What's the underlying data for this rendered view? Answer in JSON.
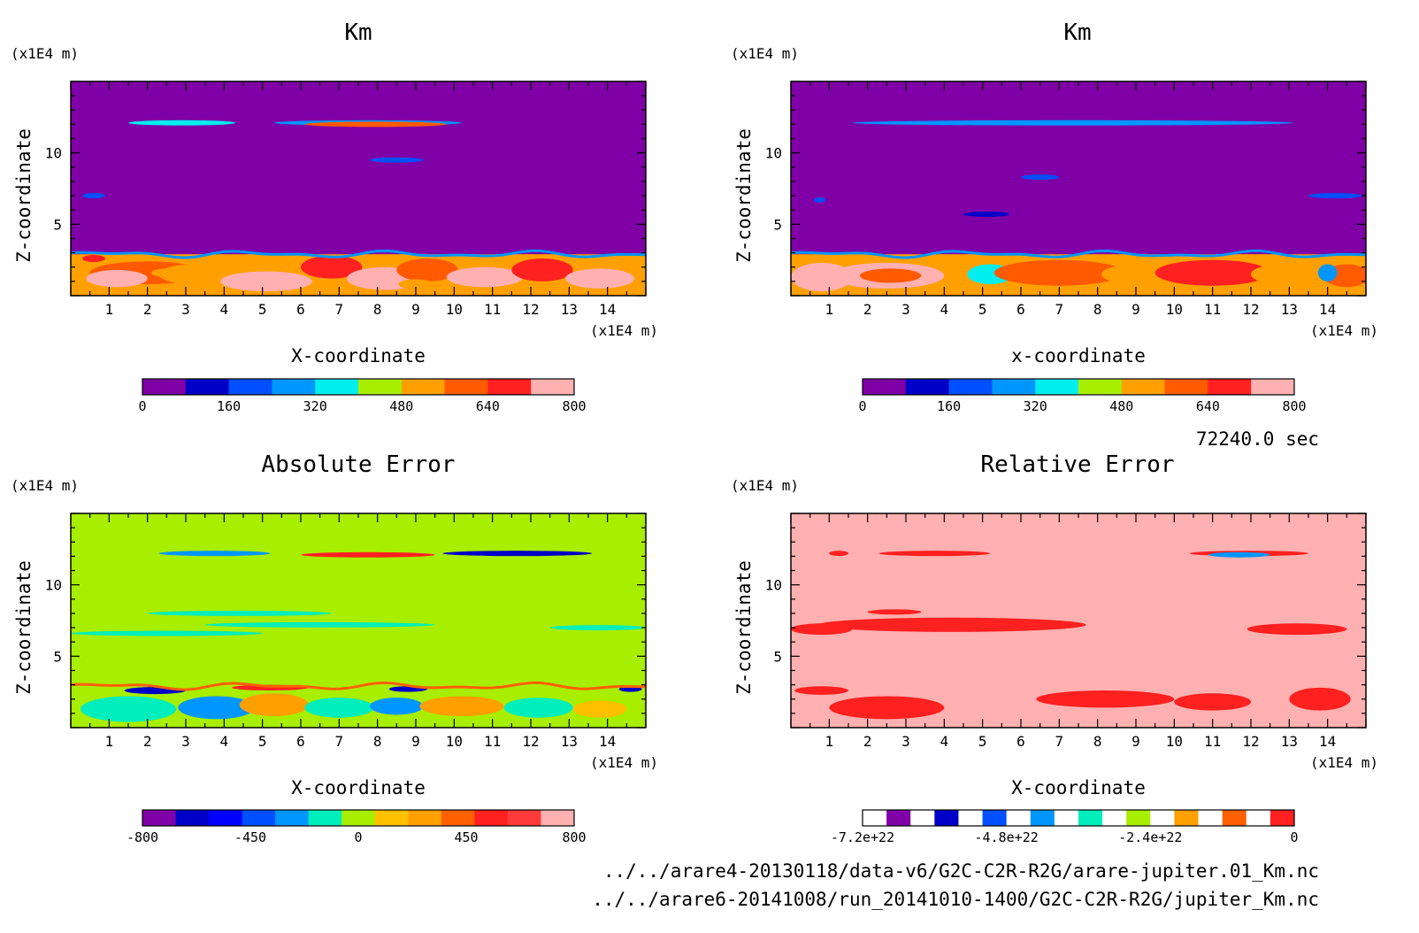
{
  "footer": {
    "time": "72240.0 sec",
    "files": [
      "../../arare4-20130118/data-v6/G2C-C2R-R2G/arare-jupiter.01_Km.nc",
      "../../arare6-20141008/run_20141010-1400/G2C-C2R-R2G/jupiter_Km.nc"
    ]
  },
  "chart_data": [
    {
      "type": "heatmap",
      "title": "Km",
      "xlabel": "X-coordinate",
      "ylabel": "Z-coordinate",
      "x_unit": "(x1E4 m)",
      "y_unit": "(x1E4 m)",
      "xlim": [
        0,
        15
      ],
      "ylim": [
        0,
        15
      ],
      "x_ticks": [
        1,
        2,
        3,
        4,
        5,
        6,
        7,
        8,
        9,
        10,
        11,
        12,
        13,
        14
      ],
      "y_ticks": [
        5,
        10
      ],
      "background_color": "#7f00a6",
      "colorbar": {
        "colors": [
          "#7f00a6",
          "#0000c8",
          "#0050ff",
          "#0096ff",
          "#00eeee",
          "#a8ee00",
          "#ffa000",
          "#ff5a00",
          "#ff2020",
          "#ffb0b0"
        ],
        "tick_labels": [
          "0",
          "160",
          "320",
          "480",
          "640",
          "800"
        ],
        "min": 0,
        "max": 800
      },
      "blobs": [
        {
          "x": 0.6,
          "z": 2.6,
          "w": 0.6,
          "h": 0.5,
          "color": "#ff2020"
        },
        {
          "x": 2,
          "z": 1.6,
          "w": 3,
          "h": 1.6,
          "color": "#ff5a00"
        },
        {
          "x": 1.2,
          "z": 1.2,
          "w": 1.6,
          "h": 1.2,
          "color": "#ffb0b0"
        },
        {
          "x": 3.2,
          "z": 1.5,
          "w": 1.8,
          "h": 1.4,
          "color": "#ffa000"
        },
        {
          "x": 5.1,
          "z": 1.0,
          "w": 2.4,
          "h": 1.4,
          "color": "#ffb0b0"
        },
        {
          "x": 6.8,
          "z": 2.0,
          "w": 1.6,
          "h": 1.6,
          "color": "#ff2020"
        },
        {
          "x": 8.2,
          "z": 1.2,
          "w": 2.0,
          "h": 1.6,
          "color": "#ffb0b0"
        },
        {
          "x": 9.3,
          "z": 1.8,
          "w": 1.6,
          "h": 1.6,
          "color": "#ff5a00"
        },
        {
          "x": 10.8,
          "z": 1.3,
          "w": 2.0,
          "h": 1.4,
          "color": "#ffb0b0"
        },
        {
          "x": 12.3,
          "z": 1.8,
          "w": 1.6,
          "h": 1.6,
          "color": "#ff2020"
        },
        {
          "x": 13.8,
          "z": 1.2,
          "w": 1.8,
          "h": 1.4,
          "color": "#ffb0b0"
        },
        {
          "x": 2.5,
          "z": 1.6,
          "w": 0.8,
          "h": 0.6,
          "color": "#ffa000"
        },
        {
          "x": 9.0,
          "z": 0.8,
          "w": 0.9,
          "h": 0.7,
          "color": "#ffa000"
        }
      ],
      "boundary": {
        "z": 2.9,
        "color": "#0096ff"
      },
      "streaks": [
        {
          "x0": 1.5,
          "x1": 4.3,
          "z": 12.1,
          "color": "#00eeee"
        },
        {
          "x0": 5.3,
          "x1": 10.2,
          "z": 12.1,
          "color": "#0096ff"
        },
        {
          "x0": 6.1,
          "x1": 9.8,
          "z": 12.0,
          "color": "#ff5a00"
        },
        {
          "x0": 7.8,
          "x1": 9.2,
          "z": 9.5,
          "color": "#0050ff"
        },
        {
          "x0": 0.3,
          "x1": 0.9,
          "z": 7.0,
          "color": "#0050ff"
        }
      ]
    },
    {
      "type": "heatmap",
      "title": "Km",
      "xlabel": "x-coordinate",
      "ylabel": "Z-coordinate",
      "x_unit": "(x1E4 m)",
      "y_unit": "(x1E4 m)",
      "xlim": [
        0,
        15
      ],
      "ylim": [
        0,
        15
      ],
      "x_ticks": [
        1,
        2,
        3,
        4,
        5,
        6,
        7,
        8,
        9,
        10,
        11,
        12,
        13,
        14
      ],
      "y_ticks": [
        5,
        10
      ],
      "background_color": "#7f00a6",
      "colorbar": {
        "colors": [
          "#7f00a6",
          "#0000c8",
          "#0050ff",
          "#0096ff",
          "#00eeee",
          "#a8ee00",
          "#ffa000",
          "#ff5a00",
          "#ff2020",
          "#ffb0b0"
        ],
        "tick_labels": [
          "0",
          "160",
          "320",
          "480",
          "640",
          "800"
        ],
        "min": 0,
        "max": 800
      },
      "blobs": [
        {
          "x": 0.8,
          "z": 1.3,
          "w": 1.6,
          "h": 2.0,
          "color": "#ffb0b0"
        },
        {
          "x": 2.5,
          "z": 1.4,
          "w": 3.0,
          "h": 1.8,
          "color": "#ffb0b0"
        },
        {
          "x": 2.6,
          "z": 1.4,
          "w": 1.6,
          "h": 1.0,
          "color": "#ff5a00"
        },
        {
          "x": 5.2,
          "z": 1.5,
          "w": 1.2,
          "h": 1.4,
          "color": "#00eeee"
        },
        {
          "x": 7.0,
          "z": 1.6,
          "w": 3.4,
          "h": 1.8,
          "color": "#ff5a00"
        },
        {
          "x": 9.0,
          "z": 1.5,
          "w": 1.8,
          "h": 1.4,
          "color": "#ffa000"
        },
        {
          "x": 11.0,
          "z": 1.6,
          "w": 3.0,
          "h": 1.8,
          "color": "#ff2020"
        },
        {
          "x": 12.8,
          "z": 1.5,
          "w": 1.6,
          "h": 1.4,
          "color": "#ffa000"
        },
        {
          "x": 14.5,
          "z": 1.4,
          "w": 1.2,
          "h": 1.6,
          "color": "#ff5a00"
        },
        {
          "x": 14.0,
          "z": 1.6,
          "w": 0.5,
          "h": 1.2,
          "color": "#0096ff"
        }
      ],
      "boundary": {
        "z": 2.9,
        "color": "#0096ff"
      },
      "streaks": [
        {
          "x0": 1.6,
          "x1": 13.1,
          "z": 12.1,
          "color": "#0096ff"
        },
        {
          "x0": 4.5,
          "x1": 5.7,
          "z": 5.7,
          "color": "#0000c8"
        },
        {
          "x0": 6.0,
          "x1": 7.0,
          "z": 8.3,
          "color": "#0050ff"
        },
        {
          "x0": 0.6,
          "x1": 0.9,
          "z": 6.7,
          "color": "#0050ff"
        },
        {
          "x0": 13.5,
          "x1": 14.9,
          "z": 7.0,
          "color": "#0050ff"
        }
      ]
    },
    {
      "type": "heatmap",
      "title": "Absolute Error",
      "xlabel": "X-coordinate",
      "ylabel": "Z-coordinate",
      "x_unit": "(x1E4 m)",
      "y_unit": "(x1E4 m)",
      "xlim": [
        0,
        15
      ],
      "ylim": [
        0,
        15
      ],
      "x_ticks": [
        1,
        2,
        3,
        4,
        5,
        6,
        7,
        8,
        9,
        10,
        11,
        12,
        13,
        14
      ],
      "y_ticks": [
        5,
        10
      ],
      "background_color": "#a8ee00",
      "colorbar": {
        "colors": [
          "#7f00a6",
          "#0000c8",
          "#0000ff",
          "#0050ff",
          "#0096ff",
          "#00eebb",
          "#a8ee00",
          "#ffc000",
          "#ffa000",
          "#ff6000",
          "#ff2020",
          "#ff3a3a",
          "#ffb0b0"
        ],
        "tick_labels": [
          "-800",
          "-450",
          "0",
          "450",
          "800"
        ],
        "min": -800,
        "max": 800
      },
      "blobs": [
        {
          "x": 1.5,
          "z": 1.3,
          "w": 2.5,
          "h": 1.8,
          "color": "#00eebb"
        },
        {
          "x": 3.8,
          "z": 1.4,
          "w": 2.0,
          "h": 1.6,
          "color": "#0096ff"
        },
        {
          "x": 5.3,
          "z": 1.6,
          "w": 1.8,
          "h": 1.6,
          "color": "#ffa000"
        },
        {
          "x": 7.0,
          "z": 1.4,
          "w": 1.8,
          "h": 1.4,
          "color": "#00eebb"
        },
        {
          "x": 8.5,
          "z": 1.5,
          "w": 1.4,
          "h": 1.2,
          "color": "#0096ff"
        },
        {
          "x": 10.2,
          "z": 1.5,
          "w": 2.2,
          "h": 1.4,
          "color": "#ffa000"
        },
        {
          "x": 12.2,
          "z": 1.4,
          "w": 1.8,
          "h": 1.4,
          "color": "#00eebb"
        },
        {
          "x": 13.8,
          "z": 1.3,
          "w": 1.4,
          "h": 1.2,
          "color": "#ffc000"
        },
        {
          "x": 2.2,
          "z": 2.6,
          "w": 1.6,
          "h": 0.5,
          "color": "#0000c8"
        },
        {
          "x": 8.8,
          "z": 2.7,
          "w": 1.0,
          "h": 0.4,
          "color": "#0000c8"
        },
        {
          "x": 14.6,
          "z": 2.7,
          "w": 0.6,
          "h": 0.4,
          "color": "#0000c8"
        },
        {
          "x": 5.2,
          "z": 2.8,
          "w": 2.0,
          "h": 0.4,
          "color": "#ff2020"
        }
      ],
      "boundary": {
        "z": 2.9,
        "color": "#ff6000"
      },
      "streaks": [
        {
          "x0": 2.3,
          "x1": 5.2,
          "z": 12.2,
          "color": "#0096ff"
        },
        {
          "x0": 6.0,
          "x1": 9.5,
          "z": 12.1,
          "color": "#ff2020"
        },
        {
          "x0": 9.7,
          "x1": 13.6,
          "z": 12.2,
          "color": "#0000c8"
        },
        {
          "x0": 0.0,
          "x1": 5.0,
          "z": 6.6,
          "color": "#00eebb"
        },
        {
          "x0": 2.0,
          "x1": 6.8,
          "z": 8.0,
          "color": "#00eebb"
        },
        {
          "x0": 3.5,
          "x1": 9.5,
          "z": 7.2,
          "color": "#00eebb"
        },
        {
          "x0": 12.5,
          "x1": 15.0,
          "z": 7.0,
          "color": "#00eebb"
        }
      ]
    },
    {
      "type": "heatmap",
      "title": "Relative Error",
      "xlabel": "X-coordinate",
      "ylabel": "Z-coordinate",
      "x_unit": "(x1E4 m)",
      "y_unit": "(x1E4 m)",
      "xlim": [
        0,
        15
      ],
      "ylim": [
        0,
        15
      ],
      "x_ticks": [
        1,
        2,
        3,
        4,
        5,
        6,
        7,
        8,
        9,
        10,
        11,
        12,
        13,
        14
      ],
      "y_ticks": [
        5,
        10
      ],
      "background_color": "#ffb0b0",
      "colorbar": {
        "colors": [
          "#ffffff",
          "#7f00a6",
          "#ffffff",
          "#0000c8",
          "#ffffff",
          "#0050ff",
          "#ffffff",
          "#0096ff",
          "#ffffff",
          "#00eebb",
          "#ffffff",
          "#a8ee00",
          "#ffffff",
          "#ffa000",
          "#ffffff",
          "#ff6000",
          "#ffffff",
          "#ff2020"
        ],
        "tick_labels": [
          "-7.2e+22",
          "-4.8e+22",
          "-2.4e+22",
          "0"
        ],
        "min": -7.2e+22,
        "max": 0
      },
      "blobs": [
        {
          "x": 2.5,
          "z": 1.4,
          "w": 3.0,
          "h": 1.6,
          "color": "#ff2020"
        },
        {
          "x": 0.8,
          "z": 2.6,
          "w": 1.4,
          "h": 0.6,
          "color": "#ff2020"
        },
        {
          "x": 8.2,
          "z": 2.0,
          "w": 3.6,
          "h": 1.2,
          "color": "#ff2020"
        },
        {
          "x": 11.0,
          "z": 1.8,
          "w": 2.0,
          "h": 1.2,
          "color": "#ff2020"
        },
        {
          "x": 13.8,
          "z": 2.0,
          "w": 1.6,
          "h": 1.6,
          "color": "#ff2020"
        },
        {
          "x": 4.2,
          "z": 7.2,
          "w": 7.0,
          "h": 1.0,
          "color": "#ff2020"
        },
        {
          "x": 0.8,
          "z": 6.9,
          "w": 1.6,
          "h": 0.8,
          "color": "#ff2020"
        },
        {
          "x": 13.2,
          "z": 6.9,
          "w": 2.6,
          "h": 0.8,
          "color": "#ff2020"
        }
      ],
      "boundary": {
        "z": null,
        "color": ""
      },
      "streaks": [
        {
          "x0": 2.3,
          "x1": 5.2,
          "z": 12.2,
          "color": "#ff2020"
        },
        {
          "x0": 1.0,
          "x1": 1.5,
          "z": 12.2,
          "color": "#ff2020"
        },
        {
          "x0": 10.4,
          "x1": 13.5,
          "z": 12.2,
          "color": "#ff2020"
        },
        {
          "x0": 10.9,
          "x1": 12.5,
          "z": 12.1,
          "color": "#0096ff"
        },
        {
          "x0": 2.0,
          "x1": 3.4,
          "z": 8.1,
          "color": "#ff2020"
        }
      ]
    }
  ]
}
